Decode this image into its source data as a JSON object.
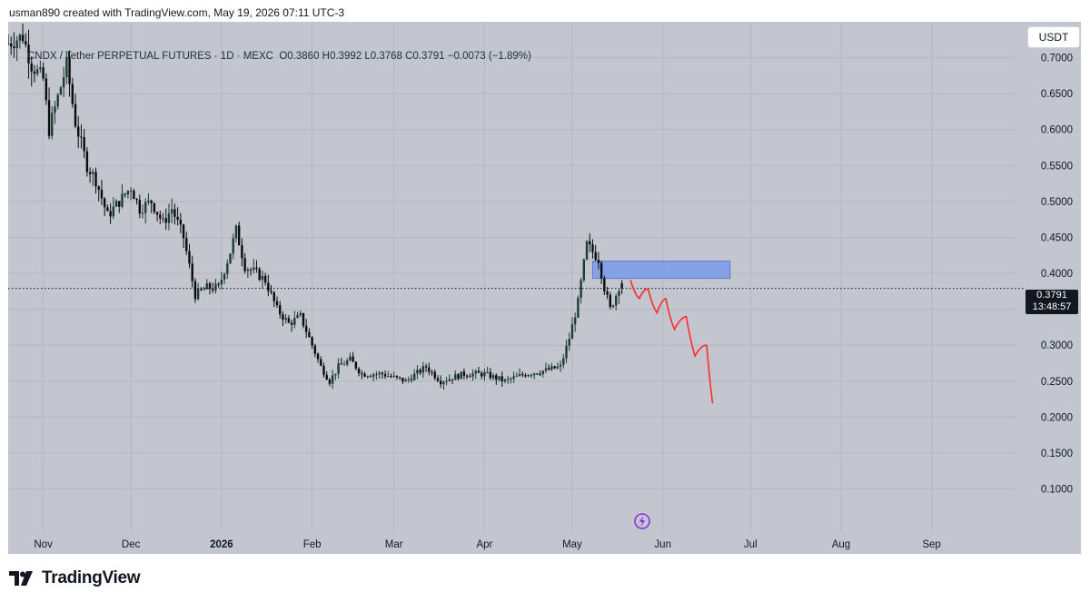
{
  "attribution": "usman890 created with TradingView.com, May 19, 2026 07:11 UTC-3",
  "legend": {
    "pair": "CNDX / Tether PERPETUAL FUTURES · 1D · MEXC",
    "ohlc": "O0.3860  H0.3992  L0.3768  C0.3791  −0.0073 (−1.89%)"
  },
  "currency_button": "USDT",
  "last_price": {
    "price": "0.3791",
    "countdown": "13:48:57"
  },
  "brand": "TradingView",
  "colors": {
    "background": "#c3c6cf",
    "up_candle": "#1c3d33",
    "down_candle": "#0a0c0e",
    "zone": "#7b9ae8",
    "projection": "#ff2b2b",
    "axis_text": "#131722"
  },
  "icons": {
    "logo": "tradingview-logo-icon",
    "alert": "lightning-icon"
  },
  "chart_data": {
    "type": "candlestick",
    "interval": "1D",
    "ylim": [
      0.04,
      0.75
    ],
    "y_ticks": [
      0.7,
      0.65,
      0.6,
      0.55,
      0.5,
      0.45,
      0.4,
      0.35,
      0.3,
      0.25,
      0.2,
      0.15,
      0.1
    ],
    "y_tick_labels": [
      "0.7000",
      "0.6500",
      "0.6000",
      "0.5500",
      "0.5000",
      "0.4500",
      "0.4000",
      "0.3500",
      "0.3000",
      "0.2500",
      "0.2000",
      "0.1500",
      "0.1000"
    ],
    "x_range": [
      "2025-10-20",
      "2026-09-30"
    ],
    "x_ticks": [
      {
        "date": "2025-11-01",
        "label": "Nov"
      },
      {
        "date": "2025-12-01",
        "label": "Dec"
      },
      {
        "date": "2026-01-01",
        "label": "2026"
      },
      {
        "date": "2026-02-01",
        "label": "Feb"
      },
      {
        "date": "2026-03-01",
        "label": "Mar"
      },
      {
        "date": "2026-04-01",
        "label": "Apr"
      },
      {
        "date": "2026-05-01",
        "label": "May"
      },
      {
        "date": "2026-06-01",
        "label": "Jun"
      },
      {
        "date": "2026-07-01",
        "label": "Jul"
      },
      {
        "date": "2026-08-01",
        "label": "Aug"
      },
      {
        "date": "2026-09-01",
        "label": "Sep"
      }
    ],
    "close_path": [
      [
        "2025-10-20",
        0.72
      ],
      [
        "2025-10-25",
        0.73
      ],
      [
        "2025-10-28",
        0.69
      ],
      [
        "2025-11-01",
        0.67
      ],
      [
        "2025-11-03",
        0.6
      ],
      [
        "2025-11-07",
        0.66
      ],
      [
        "2025-11-09",
        0.69
      ],
      [
        "2025-11-12",
        0.61
      ],
      [
        "2025-11-16",
        0.55
      ],
      [
        "2025-11-19",
        0.53
      ],
      [
        "2025-11-23",
        0.48
      ],
      [
        "2025-11-27",
        0.5
      ],
      [
        "2025-12-01",
        0.52
      ],
      [
        "2025-12-04",
        0.49
      ],
      [
        "2025-12-08",
        0.5
      ],
      [
        "2025-12-12",
        0.47
      ],
      [
        "2025-12-15",
        0.49
      ],
      [
        "2025-12-19",
        0.45
      ],
      [
        "2025-12-23",
        0.37
      ],
      [
        "2025-12-27",
        0.38
      ],
      [
        "2025-12-31",
        0.38
      ],
      [
        "2026-01-04",
        0.43
      ],
      [
        "2026-01-06",
        0.46
      ],
      [
        "2026-01-09",
        0.41
      ],
      [
        "2026-01-13",
        0.4
      ],
      [
        "2026-01-16",
        0.39
      ],
      [
        "2026-01-20",
        0.35
      ],
      [
        "2026-01-24",
        0.33
      ],
      [
        "2026-01-28",
        0.34
      ],
      [
        "2026-02-01",
        0.3
      ],
      [
        "2026-02-04",
        0.27
      ],
      [
        "2026-02-07",
        0.25
      ],
      [
        "2026-02-10",
        0.27
      ],
      [
        "2026-02-14",
        0.28
      ],
      [
        "2026-02-18",
        0.26
      ],
      [
        "2026-02-25",
        0.26
      ],
      [
        "2026-03-05",
        0.25
      ],
      [
        "2026-03-12",
        0.27
      ],
      [
        "2026-03-17",
        0.25
      ],
      [
        "2026-03-25",
        0.26
      ],
      [
        "2026-04-01",
        0.26
      ],
      [
        "2026-04-08",
        0.25
      ],
      [
        "2026-04-15",
        0.26
      ],
      [
        "2026-04-22",
        0.265
      ],
      [
        "2026-04-27",
        0.27
      ],
      [
        "2026-04-30",
        0.31
      ],
      [
        "2026-05-03",
        0.36
      ],
      [
        "2026-05-06",
        0.44
      ],
      [
        "2026-05-08",
        0.43
      ],
      [
        "2026-05-10",
        0.42
      ],
      [
        "2026-05-12",
        0.38
      ],
      [
        "2026-05-14",
        0.35
      ],
      [
        "2026-05-16",
        0.37
      ],
      [
        "2026-05-17",
        0.382
      ],
      [
        "2026-05-18",
        0.3791
      ]
    ],
    "last_close": 0.3791,
    "price_line": 0.3791,
    "zone": {
      "start": "2026-05-08",
      "end": "2026-06-24",
      "low": 0.393,
      "high": 0.417
    },
    "projection": [
      [
        "2026-05-21",
        0.39
      ],
      [
        "2026-05-24",
        0.365
      ],
      [
        "2026-05-27",
        0.378
      ],
      [
        "2026-05-30",
        0.345
      ],
      [
        "2026-06-02",
        0.365
      ],
      [
        "2026-06-05",
        0.322
      ],
      [
        "2026-06-09",
        0.34
      ],
      [
        "2026-06-12",
        0.285
      ],
      [
        "2026-06-16",
        0.3
      ],
      [
        "2026-06-18",
        0.22
      ]
    ]
  }
}
